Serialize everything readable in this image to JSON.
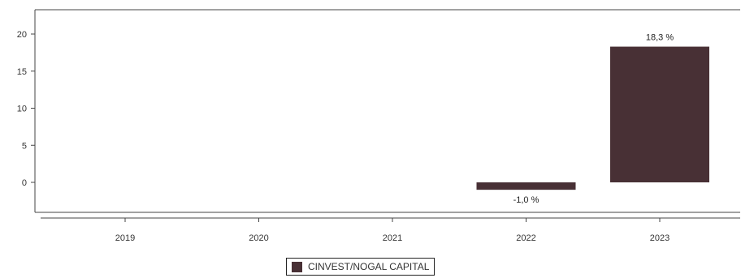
{
  "chart_data": {
    "type": "bar",
    "categories": [
      "2019",
      "2020",
      "2021",
      "2022",
      "2023"
    ],
    "series": [
      {
        "name": "CINVEST/NOGAL CAPITAL",
        "values": [
          null,
          null,
          null,
          -1.0,
          18.3
        ],
        "data_labels": [
          "",
          "",
          "",
          "-1,0 %",
          "18,3 %"
        ]
      }
    ],
    "y_ticks": [
      0,
      5,
      10,
      15,
      20
    ],
    "y_tick_labels": [
      "0",
      "5",
      "10",
      "15",
      "20"
    ],
    "ylim": [
      -4,
      23
    ],
    "grid": false,
    "legend_position": "bottom-center",
    "bar_color": "#483035"
  }
}
